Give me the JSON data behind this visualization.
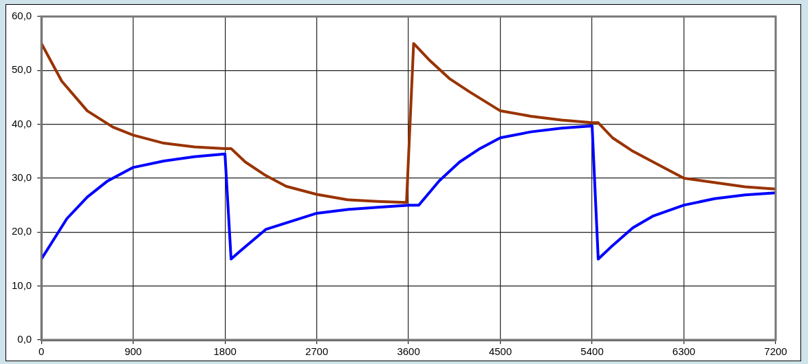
{
  "chart_data": {
    "type": "line",
    "xlim": [
      0,
      7200
    ],
    "xticks": [
      0,
      900,
      1800,
      2700,
      3600,
      4500,
      5400,
      6300,
      7200
    ],
    "ylim": [
      0,
      60
    ],
    "yticks": [
      {
        "value": 0,
        "label": "0,0"
      },
      {
        "value": 10,
        "label": "10,0"
      },
      {
        "value": 20,
        "label": "20,0"
      },
      {
        "value": 30,
        "label": "30,0"
      },
      {
        "value": 40,
        "label": "40,0"
      },
      {
        "value": 50,
        "label": "50,0"
      },
      {
        "value": 60,
        "label": "60,0"
      }
    ],
    "grid": true,
    "legend": false,
    "marker": "none",
    "line_style": "solid",
    "series": [
      {
        "color": "#993300",
        "x": [
          0,
          200,
          450,
          700,
          900,
          1200,
          1500,
          1800,
          1860,
          2000,
          2200,
          2400,
          2700,
          3000,
          3300,
          3580,
          3650,
          3800,
          4000,
          4200,
          4500,
          4800,
          5100,
          5400,
          5460,
          5600,
          5800,
          6000,
          6300,
          6600,
          6900,
          7200
        ],
        "values": [
          55,
          48,
          42.5,
          39.5,
          38,
          36.5,
          35.8,
          35.5,
          35.5,
          33,
          30.5,
          28.5,
          27,
          26,
          25.7,
          25.5,
          55,
          52,
          48.5,
          46,
          42.5,
          41.5,
          40.8,
          40.3,
          40.3,
          37.5,
          35,
          33,
          30,
          29.2,
          28.4,
          28
        ]
      },
      {
        "color": "#0000ff",
        "x": [
          0,
          100,
          250,
          450,
          650,
          900,
          1200,
          1500,
          1800,
          1860,
          1950,
          2200,
          2450,
          2700,
          3000,
          3300,
          3600,
          3700,
          3900,
          4100,
          4300,
          4500,
          4800,
          5100,
          5400,
          5460,
          5600,
          5800,
          6000,
          6300,
          6600,
          6900,
          7200
        ],
        "values": [
          15,
          18,
          22.5,
          26.5,
          29.5,
          32,
          33.2,
          34,
          34.5,
          15,
          16.5,
          20.5,
          22,
          23.5,
          24.2,
          24.6,
          25,
          25,
          29.5,
          33,
          35.5,
          37.5,
          38.6,
          39.3,
          39.7,
          15,
          17.5,
          20.8,
          23,
          25,
          26.2,
          26.9,
          27.3
        ]
      }
    ]
  }
}
